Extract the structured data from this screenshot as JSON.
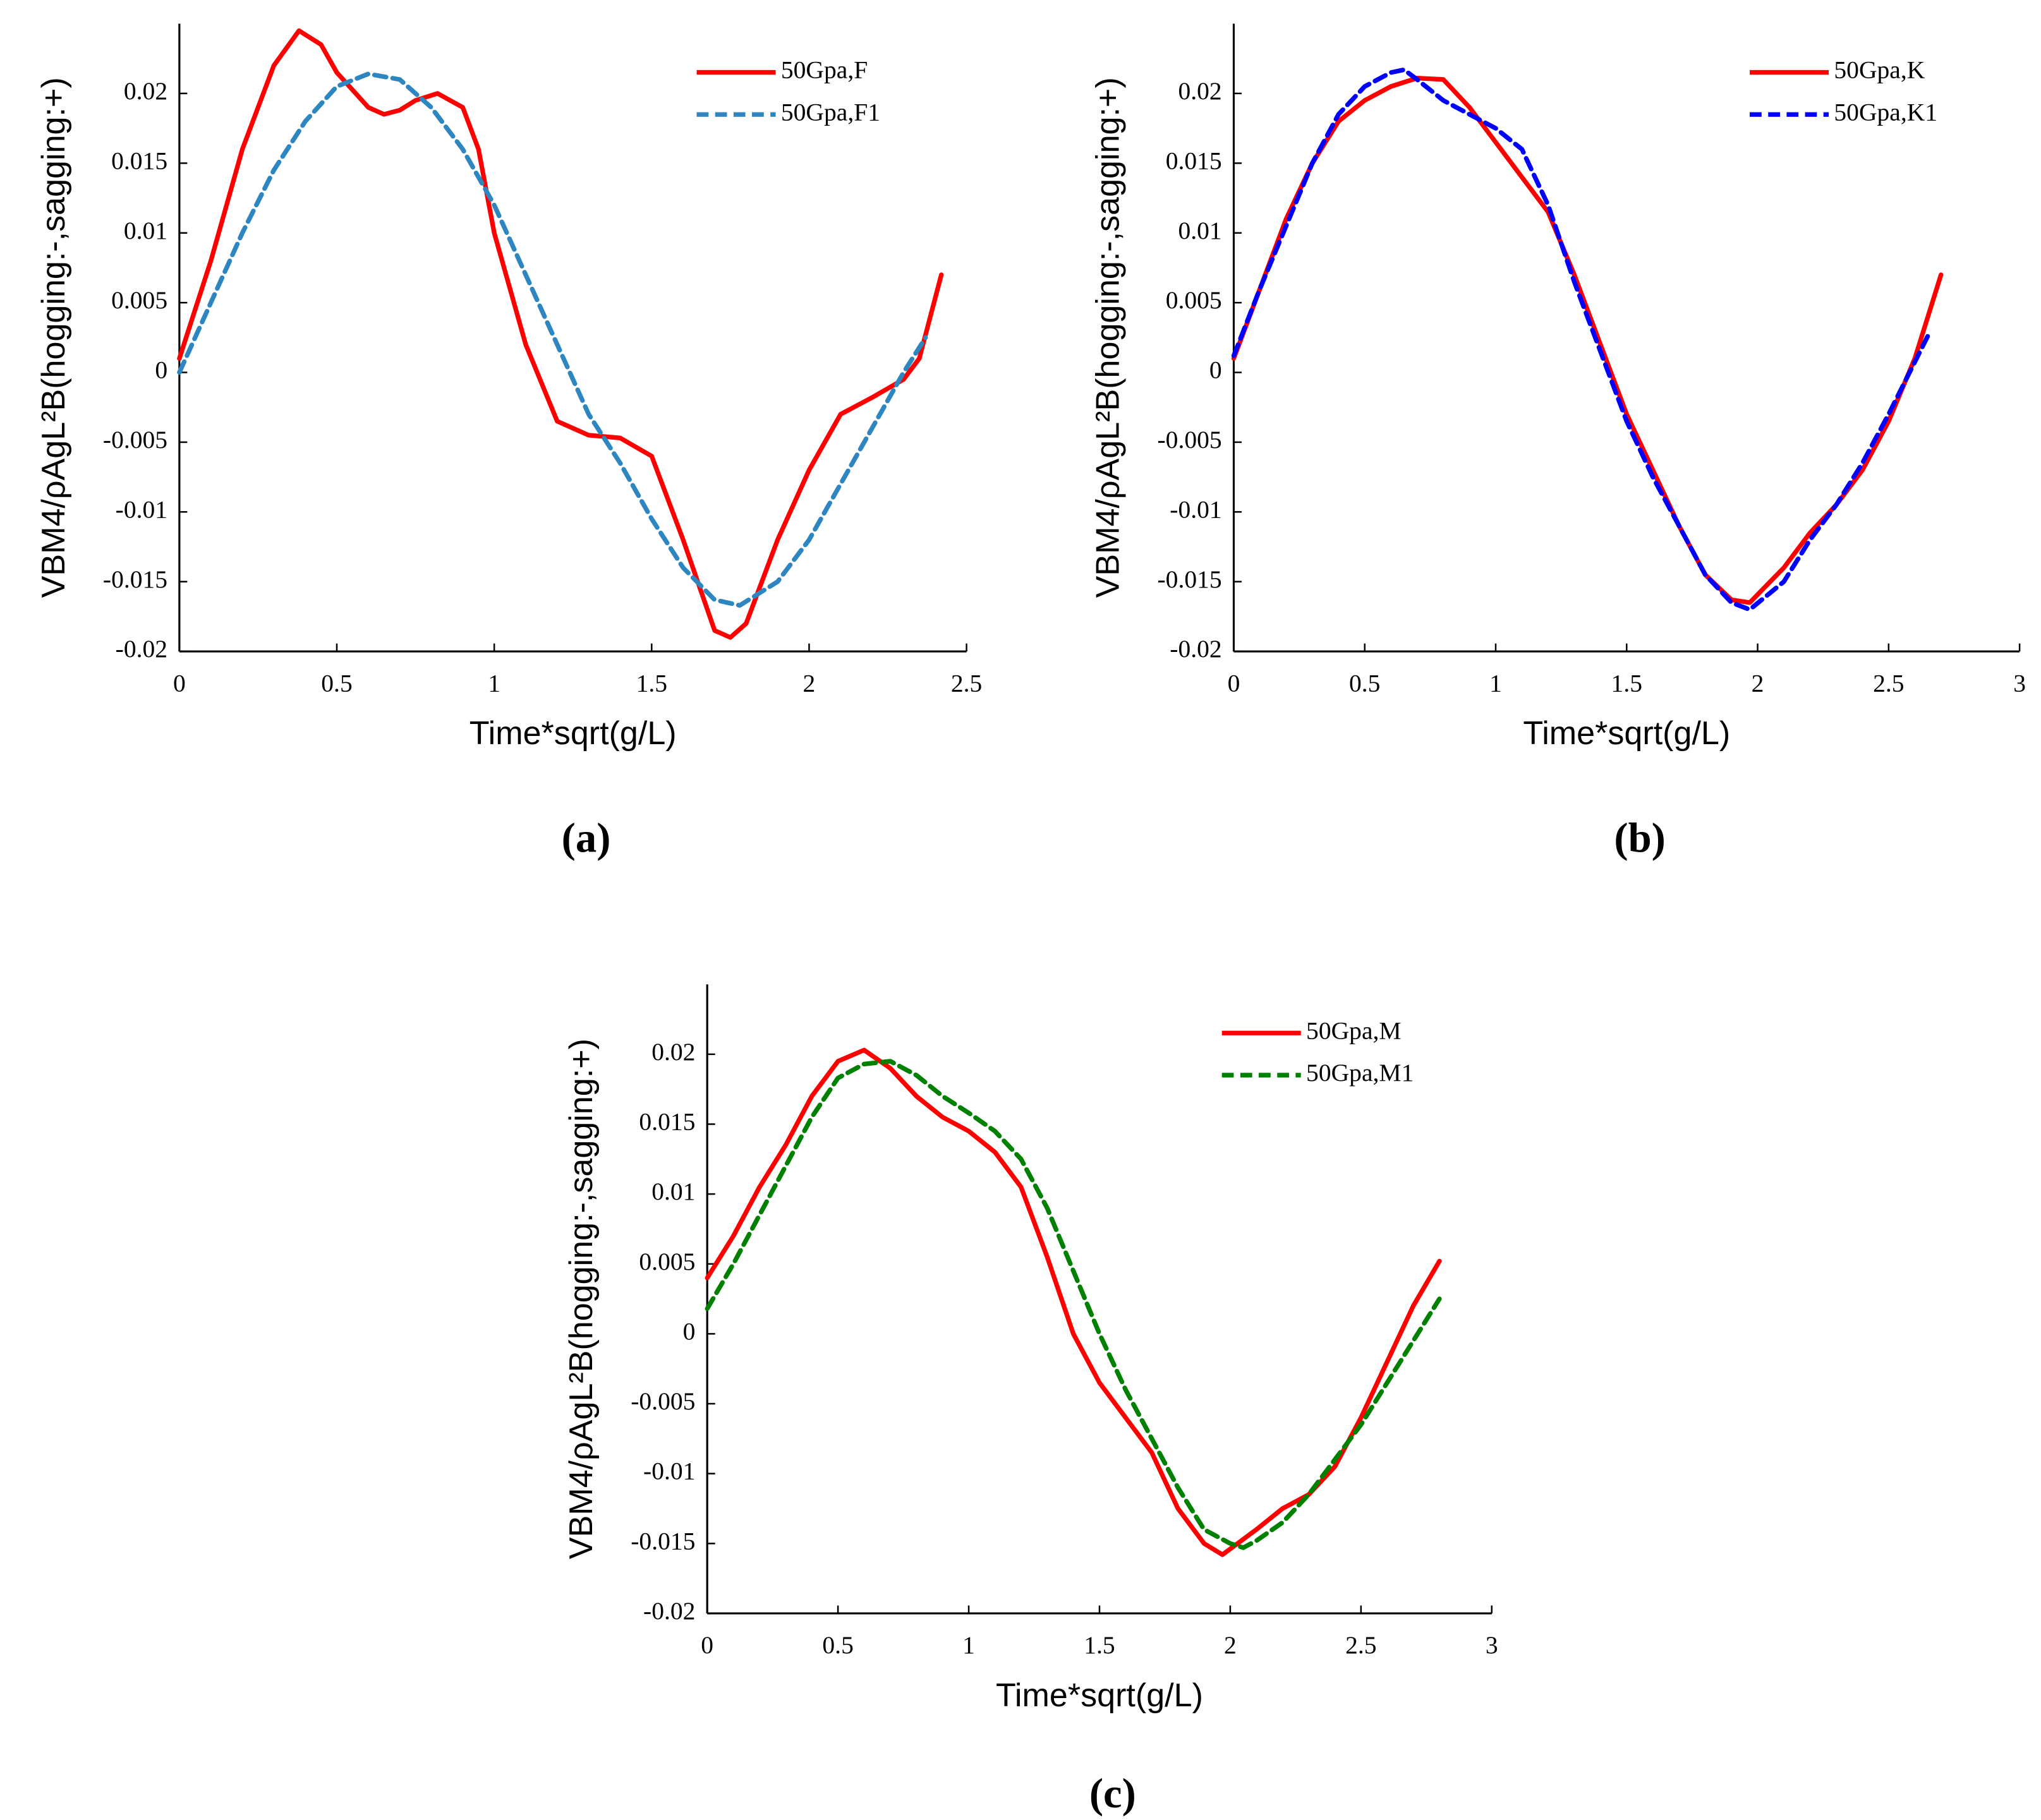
{
  "chart_data": [
    {
      "type": "line",
      "panel_label": "(a)",
      "xlabel": "Time*sqrt(g/L)",
      "ylabel": "VBM4/ρAgL²B(hogging:-,sagging:+)",
      "xlim": [
        0,
        2.5
      ],
      "xticks": [
        0,
        0.5,
        1,
        1.5,
        2,
        2.5
      ],
      "ylim": [
        -0.02,
        0.025
      ],
      "yticks": [
        -0.02,
        -0.015,
        -0.01,
        -0.005,
        0,
        0.005,
        0.01,
        0.015,
        0.02
      ],
      "legend": "upper right",
      "series": [
        {
          "name": "50Gpa,F",
          "color": "#ff0000",
          "style": "solid",
          "x": [
            0,
            0.1,
            0.2,
            0.3,
            0.38,
            0.45,
            0.5,
            0.6,
            0.65,
            0.7,
            0.75,
            0.82,
            0.9,
            0.95,
            1.0,
            1.1,
            1.2,
            1.3,
            1.4,
            1.5,
            1.6,
            1.7,
            1.75,
            1.8,
            1.9,
            2.0,
            2.1,
            2.2,
            2.3,
            2.35,
            2.42
          ],
          "values": [
            0.001,
            0.008,
            0.016,
            0.022,
            0.0245,
            0.0235,
            0.0215,
            0.019,
            0.0185,
            0.0188,
            0.0195,
            0.02,
            0.019,
            0.016,
            0.01,
            0.002,
            -0.0035,
            -0.0045,
            -0.0047,
            -0.006,
            -0.012,
            -0.0185,
            -0.019,
            -0.018,
            -0.012,
            -0.007,
            -0.003,
            -0.0018,
            -0.0005,
            0.001,
            0.007
          ]
        },
        {
          "name": "50Gpa,F1",
          "color": "#2e86c1",
          "style": "dashed",
          "x": [
            0,
            0.1,
            0.2,
            0.3,
            0.4,
            0.5,
            0.6,
            0.7,
            0.8,
            0.9,
            1.0,
            1.1,
            1.2,
            1.3,
            1.4,
            1.5,
            1.6,
            1.7,
            1.78,
            1.9,
            2.0,
            2.1,
            2.2,
            2.3,
            2.37
          ],
          "values": [
            0,
            0.005,
            0.01,
            0.0145,
            0.018,
            0.0205,
            0.0214,
            0.021,
            0.019,
            0.016,
            0.012,
            0.007,
            0.002,
            -0.003,
            -0.0065,
            -0.0105,
            -0.014,
            -0.0163,
            -0.0167,
            -0.015,
            -0.012,
            -0.008,
            -0.004,
            0,
            0.0025
          ]
        }
      ]
    },
    {
      "type": "line",
      "panel_label": "(b)",
      "xlabel": "Time*sqrt(g/L)",
      "ylabel": "VBM4/ρAgL²B(hogging:-,sagging:+)",
      "xlim": [
        0,
        3
      ],
      "xticks": [
        0,
        0.5,
        1,
        1.5,
        2,
        2.5,
        3
      ],
      "ylim": [
        -0.02,
        0.025
      ],
      "yticks": [
        -0.02,
        -0.015,
        -0.01,
        -0.005,
        0,
        0.005,
        0.01,
        0.015,
        0.02
      ],
      "legend": "upper right",
      "series": [
        {
          "name": "50Gpa,K",
          "color": "#ff0000",
          "style": "solid",
          "x": [
            0,
            0.1,
            0.2,
            0.3,
            0.4,
            0.5,
            0.6,
            0.7,
            0.8,
            0.9,
            1.0,
            1.1,
            1.2,
            1.3,
            1.4,
            1.5,
            1.6,
            1.7,
            1.8,
            1.9,
            1.97,
            2.1,
            2.2,
            2.3,
            2.4,
            2.5,
            2.6,
            2.7
          ],
          "values": [
            0.001,
            0.006,
            0.011,
            0.015,
            0.018,
            0.0195,
            0.0205,
            0.0211,
            0.021,
            0.019,
            0.0165,
            0.014,
            0.0115,
            0.007,
            0.002,
            -0.003,
            -0.007,
            -0.011,
            -0.0145,
            -0.0163,
            -0.0165,
            -0.014,
            -0.0115,
            -0.0095,
            -0.007,
            -0.0035,
            0.001,
            0.007
          ]
        },
        {
          "name": "50Gpa,K1",
          "color": "#0000ff",
          "style": "dashed",
          "x": [
            0,
            0.1,
            0.2,
            0.3,
            0.4,
            0.5,
            0.6,
            0.65,
            0.7,
            0.8,
            0.9,
            1.0,
            1.1,
            1.2,
            1.3,
            1.4,
            1.5,
            1.6,
            1.7,
            1.8,
            1.9,
            1.97,
            2.1,
            2.2,
            2.3,
            2.4,
            2.5,
            2.66
          ],
          "values": [
            0.0012,
            0.006,
            0.0105,
            0.015,
            0.0185,
            0.0205,
            0.0215,
            0.0217,
            0.021,
            0.0195,
            0.0185,
            0.0175,
            0.016,
            0.012,
            0.0065,
            0.0015,
            -0.0035,
            -0.0075,
            -0.011,
            -0.0145,
            -0.0165,
            -0.017,
            -0.015,
            -0.012,
            -0.0095,
            -0.0065,
            -0.003,
            0.003
          ]
        }
      ]
    },
    {
      "type": "line",
      "panel_label": "(c)",
      "xlabel": "Time*sqrt(g/L)",
      "ylabel": "VBM4/ρAgL²B(hogging:-,sagging:+)",
      "xlim": [
        0,
        3
      ],
      "xticks": [
        0,
        0.5,
        1,
        1.5,
        2,
        2.5,
        3
      ],
      "ylim": [
        -0.02,
        0.025
      ],
      "yticks": [
        -0.02,
        -0.015,
        -0.01,
        -0.005,
        0,
        0.005,
        0.01,
        0.015,
        0.02
      ],
      "legend": "upper right",
      "series": [
        {
          "name": "50Gpa,M",
          "color": "#ff0000",
          "style": "solid",
          "x": [
            0,
            0.1,
            0.2,
            0.3,
            0.4,
            0.5,
            0.6,
            0.7,
            0.8,
            0.9,
            1.0,
            1.1,
            1.2,
            1.3,
            1.4,
            1.5,
            1.6,
            1.7,
            1.8,
            1.9,
            1.97,
            2.1,
            2.2,
            2.3,
            2.4,
            2.5,
            2.6,
            2.7,
            2.8
          ],
          "values": [
            0.004,
            0.007,
            0.0105,
            0.0135,
            0.017,
            0.0195,
            0.0203,
            0.019,
            0.017,
            0.0155,
            0.0145,
            0.013,
            0.0105,
            0.0055,
            0,
            -0.0035,
            -0.006,
            -0.0085,
            -0.0125,
            -0.015,
            -0.0158,
            -0.014,
            -0.0125,
            -0.0115,
            -0.0095,
            -0.006,
            -0.002,
            0.002,
            0.0052
          ]
        },
        {
          "name": "50Gpa,M1",
          "color": "#008000",
          "style": "dashed",
          "x": [
            0,
            0.1,
            0.2,
            0.3,
            0.4,
            0.5,
            0.6,
            0.7,
            0.8,
            0.9,
            1.0,
            1.1,
            1.2,
            1.3,
            1.4,
            1.5,
            1.6,
            1.7,
            1.8,
            1.9,
            2.0,
            2.05,
            2.1,
            2.2,
            2.3,
            2.4,
            2.5,
            2.6,
            2.7,
            2.8
          ],
          "values": [
            0.0018,
            0.005,
            0.0085,
            0.012,
            0.0155,
            0.0183,
            0.0193,
            0.0195,
            0.0185,
            0.017,
            0.0158,
            0.0145,
            0.0125,
            0.009,
            0.0045,
            0,
            -0.004,
            -0.0075,
            -0.011,
            -0.014,
            -0.015,
            -0.0153,
            -0.0148,
            -0.0135,
            -0.0115,
            -0.009,
            -0.0065,
            -0.0035,
            -0.0005,
            0.0025
          ]
        }
      ]
    }
  ]
}
